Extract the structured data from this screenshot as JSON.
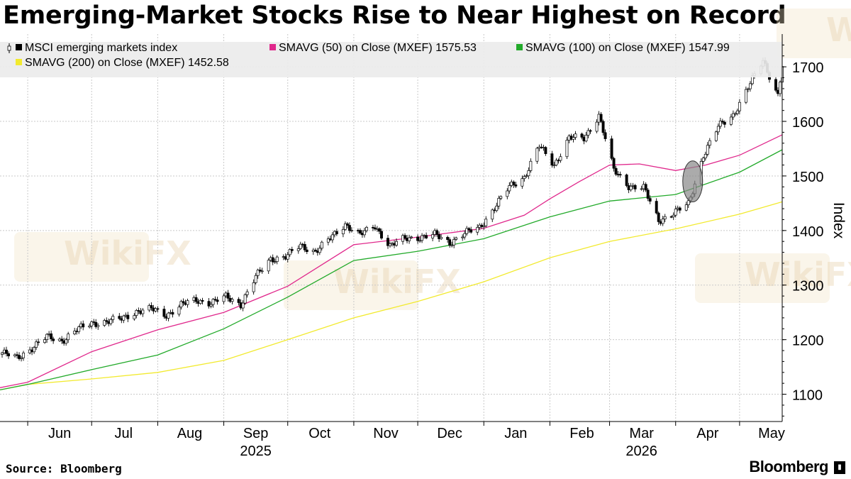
{
  "title": "Emerging-Market Stocks Rise to Near Highest on Record",
  "source": "Source: Bloomberg",
  "brand": "Bloomberg",
  "watermark_text": "WikiFX",
  "chart_data": {
    "type": "line",
    "ylabel": "Index",
    "ylim": [
      1050,
      1760
    ],
    "yticks": [
      1100,
      1200,
      1300,
      1400,
      1500,
      1600,
      1700
    ],
    "grid": true,
    "legend_position": "top-left",
    "x_start": "2025-05-19",
    "x_end": "2026-05-21",
    "months": [
      {
        "label": "Jun",
        "date": "2025-06-16"
      },
      {
        "label": "Jul",
        "date": "2025-07-16"
      },
      {
        "label": "Aug",
        "date": "2025-08-16"
      },
      {
        "label": "Sep",
        "date": "2025-09-16"
      },
      {
        "label": "Oct",
        "date": "2025-10-16"
      },
      {
        "label": "Nov",
        "date": "2025-11-16"
      },
      {
        "label": "Dec",
        "date": "2025-12-16"
      },
      {
        "label": "Jan",
        "date": "2026-01-16"
      },
      {
        "label": "Feb",
        "date": "2026-02-16"
      },
      {
        "label": "Mar",
        "date": "2026-03-16"
      },
      {
        "label": "Apr",
        "date": "2026-04-16"
      },
      {
        "label": "May",
        "date": "2026-05-16"
      }
    ],
    "years": [
      {
        "label": "2025",
        "date": "2025-09-16"
      },
      {
        "label": "2026",
        "date": "2026-03-16"
      }
    ],
    "series": [
      {
        "name": "MSCI emerging markets index",
        "type": "candlestick",
        "color": "#000000",
        "points": [
          [
            "2025-05-20",
            1176
          ],
          [
            "2025-05-27",
            1166
          ],
          [
            "2025-06-03",
            1185
          ],
          [
            "2025-06-10",
            1205
          ],
          [
            "2025-06-17",
            1198
          ],
          [
            "2025-06-24",
            1218
          ],
          [
            "2025-07-01",
            1230
          ],
          [
            "2025-07-08",
            1233
          ],
          [
            "2025-07-15",
            1238
          ],
          [
            "2025-07-22",
            1252
          ],
          [
            "2025-07-29",
            1256
          ],
          [
            "2025-08-05",
            1245
          ],
          [
            "2025-08-12",
            1264
          ],
          [
            "2025-08-19",
            1272
          ],
          [
            "2025-08-26",
            1268
          ],
          [
            "2025-09-02",
            1278
          ],
          [
            "2025-09-09",
            1265
          ],
          [
            "2025-09-16",
            1315
          ],
          [
            "2025-09-23",
            1348
          ],
          [
            "2025-09-30",
            1352
          ],
          [
            "2025-10-07",
            1372
          ],
          [
            "2025-10-14",
            1362
          ],
          [
            "2025-10-21",
            1385
          ],
          [
            "2025-10-28",
            1412
          ],
          [
            "2025-11-04",
            1392
          ],
          [
            "2025-11-11",
            1408
          ],
          [
            "2025-11-18",
            1372
          ],
          [
            "2025-11-25",
            1385
          ],
          [
            "2025-12-02",
            1388
          ],
          [
            "2025-12-09",
            1392
          ],
          [
            "2025-12-16",
            1378
          ],
          [
            "2025-12-23",
            1395
          ],
          [
            "2025-12-30",
            1405
          ],
          [
            "2026-01-06",
            1442
          ],
          [
            "2026-01-13",
            1480
          ],
          [
            "2026-01-20",
            1498
          ],
          [
            "2026-01-27",
            1555
          ],
          [
            "2026-02-03",
            1520
          ],
          [
            "2026-02-10",
            1570
          ],
          [
            "2026-02-17",
            1568
          ],
          [
            "2026-02-24",
            1612
          ],
          [
            "2026-03-03",
            1510
          ],
          [
            "2026-03-10",
            1482
          ],
          [
            "2026-03-17",
            1478
          ],
          [
            "2026-03-24",
            1418
          ],
          [
            "2026-03-31",
            1432
          ],
          [
            "2026-04-07",
            1448
          ],
          [
            "2026-04-14",
            1538
          ],
          [
            "2026-04-21",
            1590
          ],
          [
            "2026-04-28",
            1612
          ],
          [
            "2026-05-05",
            1662
          ],
          [
            "2026-05-12",
            1712
          ],
          [
            "2026-05-19",
            1648
          ],
          [
            "2026-05-21",
            1702
          ]
        ]
      },
      {
        "name": "SMAVG (50)  on Close (MXEF) 1575.53",
        "color": "#e0288c",
        "points": [
          [
            "2025-05-19",
            1112
          ],
          [
            "2025-06-01",
            1122
          ],
          [
            "2025-07-01",
            1178
          ],
          [
            "2025-08-01",
            1218
          ],
          [
            "2025-09-01",
            1250
          ],
          [
            "2025-10-01",
            1298
          ],
          [
            "2025-11-01",
            1374
          ],
          [
            "2025-12-01",
            1388
          ],
          [
            "2026-01-01",
            1404
          ],
          [
            "2026-01-20",
            1428
          ],
          [
            "2026-02-01",
            1458
          ],
          [
            "2026-02-15",
            1490
          ],
          [
            "2026-03-01",
            1520
          ],
          [
            "2026-03-15",
            1522
          ],
          [
            "2026-04-01",
            1510
          ],
          [
            "2026-04-15",
            1520
          ],
          [
            "2026-05-01",
            1538
          ],
          [
            "2026-05-21",
            1575.53
          ]
        ]
      },
      {
        "name": "SMAVG (100)  on Close (MXEF) 1547.99",
        "color": "#22aa2a",
        "points": [
          [
            "2025-05-19",
            1108
          ],
          [
            "2025-06-01",
            1118
          ],
          [
            "2025-07-01",
            1145
          ],
          [
            "2025-08-01",
            1172
          ],
          [
            "2025-09-01",
            1220
          ],
          [
            "2025-10-01",
            1278
          ],
          [
            "2025-11-01",
            1345
          ],
          [
            "2025-12-01",
            1362
          ],
          [
            "2026-01-01",
            1385
          ],
          [
            "2026-02-01",
            1425
          ],
          [
            "2026-03-01",
            1454
          ],
          [
            "2026-04-01",
            1466
          ],
          [
            "2026-05-01",
            1507
          ],
          [
            "2026-05-21",
            1547.99
          ]
        ]
      },
      {
        "name": "SMAVG (200)  on Close (MXEF) 1452.58",
        "color": "#f2ea2f",
        "points": [
          [
            "2025-05-19",
            1108
          ],
          [
            "2025-06-01",
            1118
          ],
          [
            "2025-07-01",
            1128
          ],
          [
            "2025-08-01",
            1140
          ],
          [
            "2025-09-01",
            1162
          ],
          [
            "2025-10-01",
            1200
          ],
          [
            "2025-11-01",
            1240
          ],
          [
            "2025-12-01",
            1270
          ],
          [
            "2026-01-01",
            1306
          ],
          [
            "2026-02-01",
            1350
          ],
          [
            "2026-03-01",
            1380
          ],
          [
            "2026-04-01",
            1403
          ],
          [
            "2026-05-01",
            1430
          ],
          [
            "2026-05-21",
            1452.58
          ]
        ]
      }
    ],
    "annotation": {
      "type": "ellipse",
      "date": "2026-04-09",
      "y_low": 1455,
      "y_high": 1525,
      "color": "#888888"
    }
  }
}
